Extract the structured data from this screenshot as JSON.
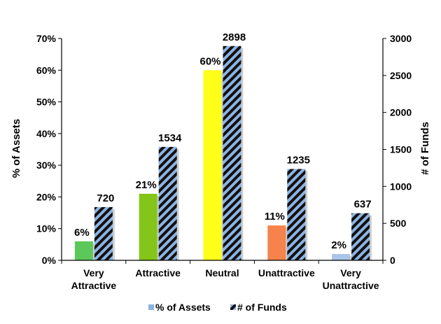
{
  "chart_data": {
    "type": "bar",
    "categories": [
      [
        "Very",
        "Attractive"
      ],
      [
        "Attractive"
      ],
      [
        "Neutral"
      ],
      [
        "Unattractive"
      ],
      [
        "Very",
        "Unattractive"
      ]
    ],
    "series": [
      {
        "name": "% of Assets",
        "axis": "left",
        "values": [
          6,
          21,
          60,
          11,
          2
        ],
        "labels": [
          "6%",
          "21%",
          "60%",
          "11%",
          "2%"
        ],
        "colors": [
          "#5cc85a",
          "#84c51a",
          "#ffff1a",
          "#f5834b",
          "#a9c4e8"
        ]
      },
      {
        "name": "# of Funds",
        "axis": "right",
        "values": [
          720,
          1534,
          2898,
          1235,
          637
        ],
        "labels": [
          "720",
          "1534",
          "2898",
          "1235",
          "637"
        ],
        "color": "#8db3e2",
        "pattern": "diagonal-stripes-black"
      }
    ],
    "ylabel": "% of Assets",
    "y2label": "# of Funds",
    "ylim": [
      0,
      70
    ],
    "y2lim": [
      0,
      3000
    ],
    "yticks": [
      "0%",
      "10%",
      "20%",
      "30%",
      "40%",
      "50%",
      "60%",
      "70%"
    ],
    "y2ticks": [
      "0",
      "500",
      "1000",
      "1500",
      "2000",
      "2500",
      "3000"
    ],
    "legend_position": "bottom",
    "grid": false
  }
}
